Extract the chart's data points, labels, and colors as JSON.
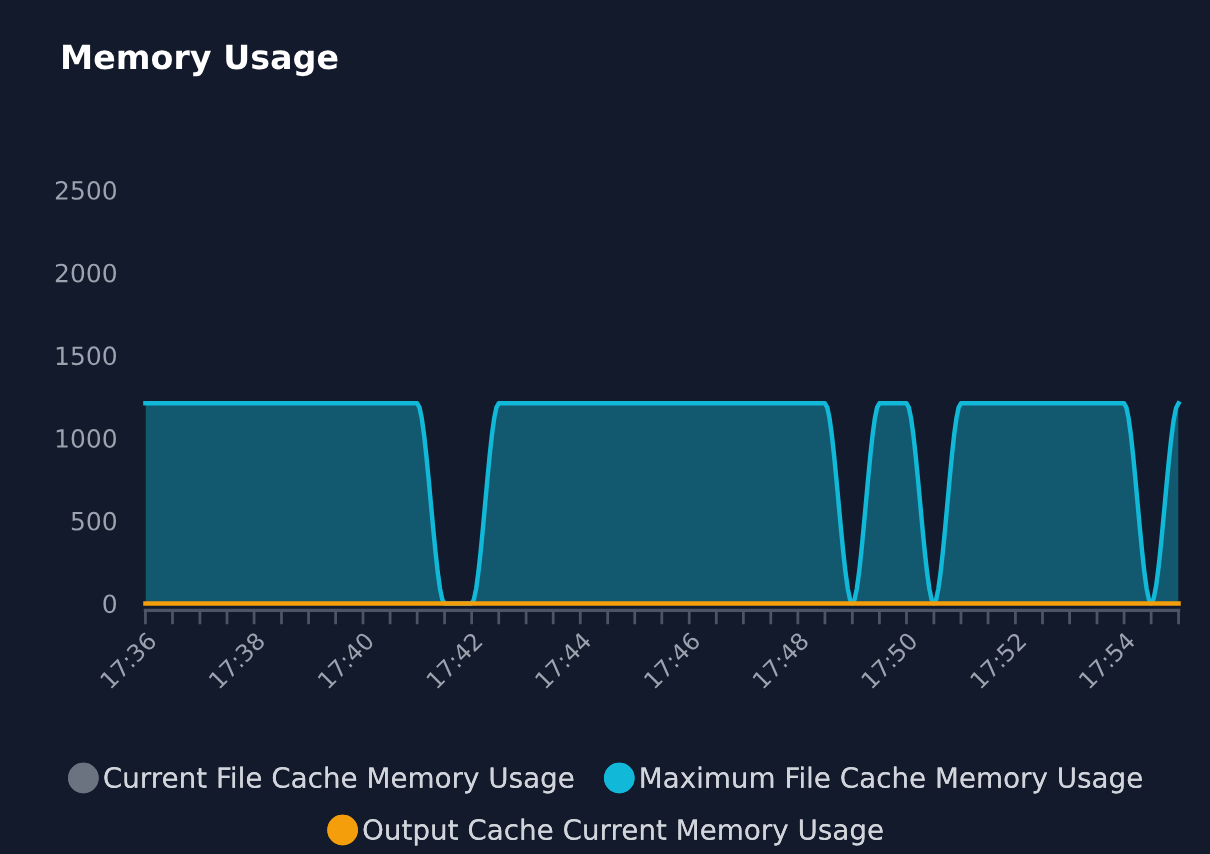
{
  "chart_data": {
    "type": "area",
    "title": "Memory Usage",
    "x": [
      17.6,
      17.6083,
      17.6167,
      17.625,
      17.6333,
      17.6417,
      17.65,
      17.6583,
      17.6667,
      17.675,
      17.6833,
      17.6917,
      17.7,
      17.7083,
      17.7167,
      17.725,
      17.7333,
      17.7417,
      17.75,
      17.7583,
      17.7667,
      17.775,
      17.7833,
      17.7917,
      17.8,
      17.8083,
      17.8167,
      17.825,
      17.8333,
      17.8417,
      17.85,
      17.8583,
      17.8667,
      17.875,
      17.8833,
      17.8917,
      17.9,
      17.9083,
      17.9167
    ],
    "series": [
      {
        "name": "Current File Cache Memory Usage",
        "color": "#6b7280",
        "values": [
          null,
          null,
          null,
          null,
          null,
          null,
          null,
          null,
          null,
          null,
          null,
          null,
          null,
          null,
          null,
          null,
          null,
          null,
          null,
          null,
          null,
          null,
          null,
          null,
          null,
          null,
          null,
          null,
          null,
          null,
          null,
          null,
          null,
          null,
          null,
          null,
          null,
          null,
          null
        ]
      },
      {
        "name": "Maximum File Cache Memory Usage",
        "color": "#12b8d8",
        "values": [
          1210,
          1210,
          1210,
          1210,
          1210,
          1210,
          1210,
          1210,
          1210,
          1210,
          1210,
          0,
          0,
          1210,
          1210,
          1210,
          1210,
          1210,
          1210,
          1210,
          1210,
          1210,
          1210,
          1210,
          1210,
          1210,
          0,
          1210,
          1210,
          0,
          1210,
          1210,
          1210,
          1210,
          1210,
          1210,
          1210,
          0,
          1210
        ]
      },
      {
        "name": "Output Cache Current Memory Usage",
        "color": "#f59e0b",
        "type": "line",
        "values": [
          0,
          0,
          0,
          0,
          0,
          0,
          0,
          0,
          0,
          0,
          0,
          0,
          0,
          0,
          0,
          0,
          0,
          0,
          0,
          0,
          0,
          0,
          0,
          0,
          0,
          0,
          0,
          0,
          0,
          0,
          0,
          0,
          0,
          0,
          0,
          0,
          0,
          0,
          0
        ]
      }
    ],
    "xlim": [
      17.6,
      17.9167
    ],
    "xticks": [
      {
        "value": 17.6,
        "label": "17:36"
      },
      {
        "value": 17.6083,
        "label": null
      },
      {
        "value": 17.6167,
        "label": null
      },
      {
        "value": 17.625,
        "label": null
      },
      {
        "value": 17.6333,
        "label": "17:38"
      },
      {
        "value": 17.6417,
        "label": null
      },
      {
        "value": 17.65,
        "label": null
      },
      {
        "value": 17.6583,
        "label": null
      },
      {
        "value": 17.6667,
        "label": "17:40"
      },
      {
        "value": 17.675,
        "label": null
      },
      {
        "value": 17.6833,
        "label": null
      },
      {
        "value": 17.6917,
        "label": null
      },
      {
        "value": 17.7,
        "label": "17:42"
      },
      {
        "value": 17.7083,
        "label": null
      },
      {
        "value": 17.7167,
        "label": null
      },
      {
        "value": 17.725,
        "label": null
      },
      {
        "value": 17.7333,
        "label": "17:44"
      },
      {
        "value": 17.7417,
        "label": null
      },
      {
        "value": 17.75,
        "label": null
      },
      {
        "value": 17.7583,
        "label": null
      },
      {
        "value": 17.7667,
        "label": "17:46"
      },
      {
        "value": 17.775,
        "label": null
      },
      {
        "value": 17.7833,
        "label": null
      },
      {
        "value": 17.7917,
        "label": null
      },
      {
        "value": 17.8,
        "label": "17:48"
      },
      {
        "value": 17.8083,
        "label": null
      },
      {
        "value": 17.8167,
        "label": null
      },
      {
        "value": 17.825,
        "label": null
      },
      {
        "value": 17.8333,
        "label": "17:50"
      },
      {
        "value": 17.8417,
        "label": null
      },
      {
        "value": 17.85,
        "label": null
      },
      {
        "value": 17.8583,
        "label": null
      },
      {
        "value": 17.8667,
        "label": "17:52"
      },
      {
        "value": 17.875,
        "label": null
      },
      {
        "value": 17.8833,
        "label": null
      },
      {
        "value": 17.8917,
        "label": null
      },
      {
        "value": 17.9,
        "label": "17:54"
      },
      {
        "value": 17.9083,
        "label": null
      },
      {
        "value": 17.9167,
        "label": null
      }
    ],
    "ylim": [
      0,
      2500
    ],
    "yticks": [
      0,
      500,
      1000,
      1500,
      2000,
      2500
    ],
    "grid": false,
    "legend": "bottom",
    "marker": "none",
    "line_style": "solid"
  }
}
